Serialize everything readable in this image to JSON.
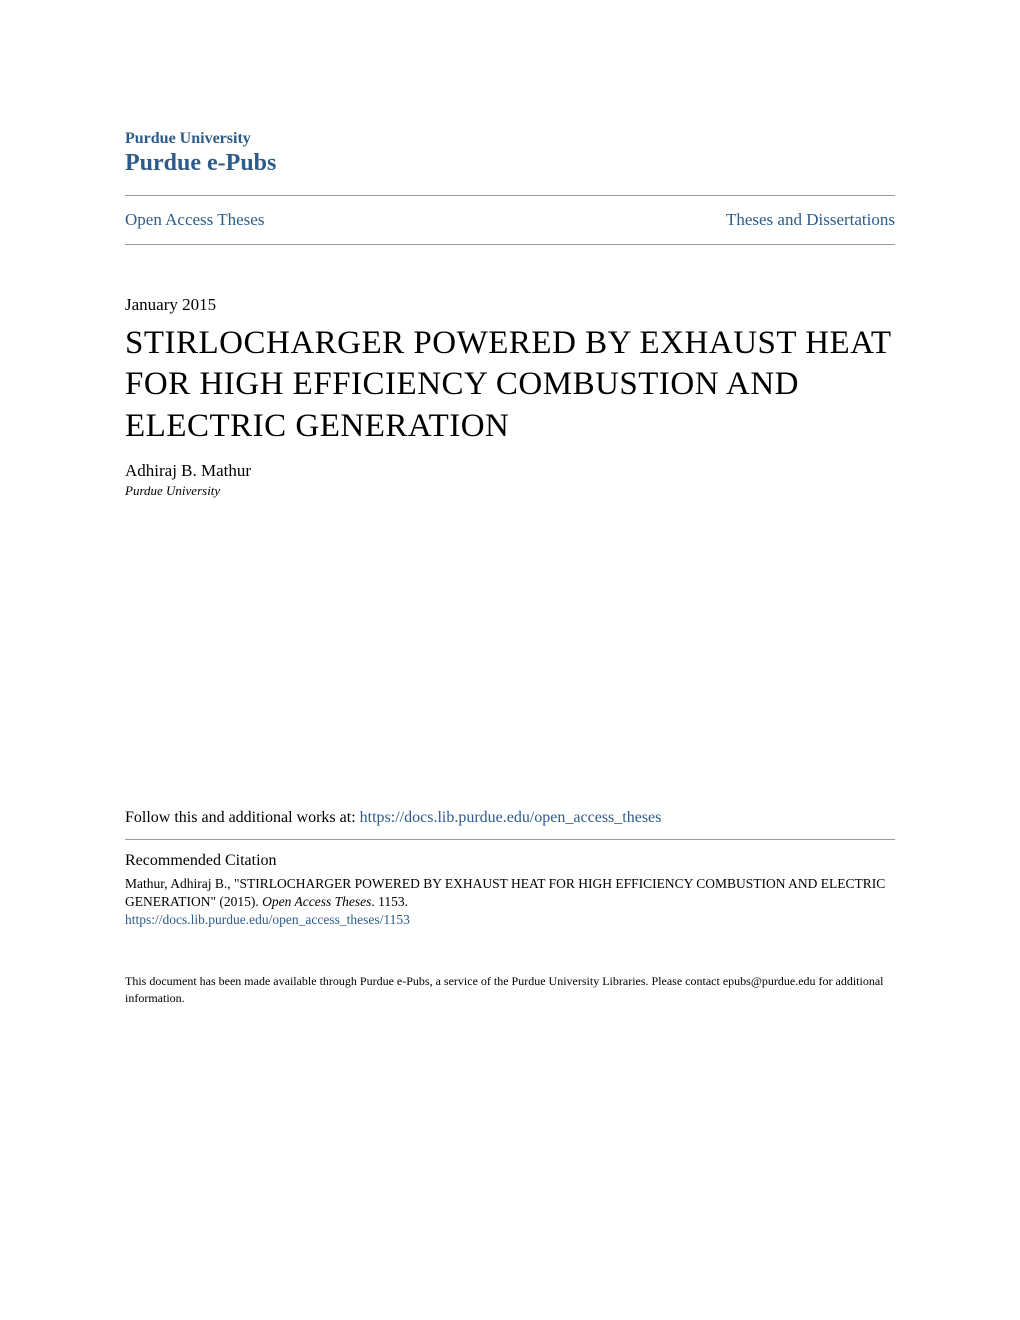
{
  "header": {
    "institution": "Purdue University",
    "repository": "Purdue e-Pubs"
  },
  "nav": {
    "left_link": "Open Access Theses",
    "right_link": "Theses and Dissertations"
  },
  "document": {
    "date": "January 2015",
    "title": "STIRLOCHARGER POWERED BY EXHAUST HEAT FOR HIGH EFFICIENCY COMBUSTION AND ELECTRIC GENERATION",
    "author": "Adhiraj B. Mathur",
    "affiliation": "Purdue University"
  },
  "follow": {
    "prefix": "Follow this and additional works at: ",
    "link": "https://docs.lib.purdue.edu/open_access_theses"
  },
  "citation": {
    "heading": "Recommended Citation",
    "author_part": "Mathur, Adhiraj B., \"STIRLOCHARGER POWERED BY EXHAUST HEAT FOR HIGH EFFICIENCY COMBUSTION AND ELECTRIC GENERATION\" (2015). ",
    "series": "Open Access Theses",
    "number": ". 1153.",
    "link": "https://docs.lib.purdue.edu/open_access_theses/1153"
  },
  "footer": {
    "note": "This document has been made available through Purdue e-Pubs, a service of the Purdue University Libraries. Please contact epubs@purdue.edu for additional information."
  },
  "colors": {
    "link_color": "#2e5c8a",
    "text_color": "#000000",
    "divider_color": "#999999",
    "background_color": "#ffffff"
  },
  "typography": {
    "body_font": "Georgia, serif",
    "institution_fontsize": 16,
    "repository_fontsize": 24,
    "nav_fontsize": 17,
    "date_fontsize": 17,
    "title_fontsize": 33,
    "author_fontsize": 17,
    "affiliation_fontsize": 13,
    "follow_fontsize": 16,
    "citation_heading_fontsize": 16,
    "citation_text_fontsize": 13.5,
    "footer_fontsize": 12
  }
}
